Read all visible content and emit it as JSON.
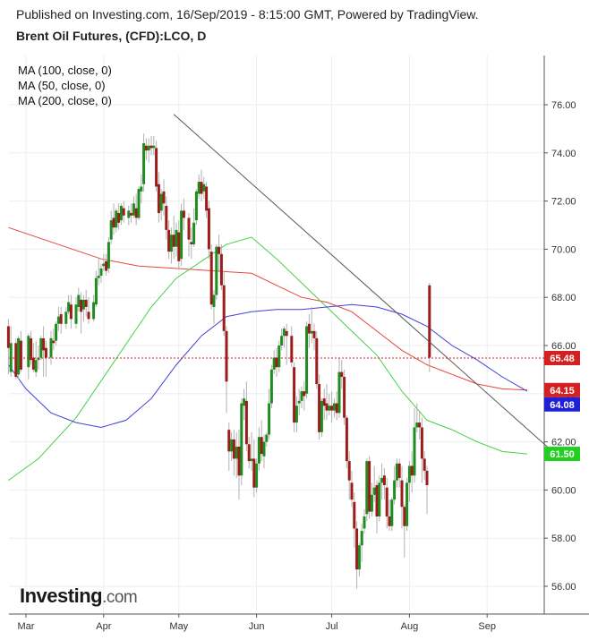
{
  "header": {
    "published": "Published on Investing.com, 16/Sep/2019 - 8:15:00 GMT, Powered by TradingView.",
    "title": "Brent Oil Futures, (CFD):LCO, D"
  },
  "legend": [
    "MA (100, close, 0)",
    "MA (50, close, 0)",
    "MA (200, close, 0)"
  ],
  "logo": {
    "main": "Investing",
    "suffix": ".com"
  },
  "colors": {
    "up": "#1e8c1e",
    "down": "#9c1b1b",
    "ma100": "#e8463a",
    "ma50": "#46d046",
    "ma200": "#4040d8",
    "trend": "#555555"
  },
  "chart_data": {
    "type": "candlestick",
    "title": "Brent Oil Futures, (CFD):LCO, D",
    "ylim": [
      55,
      78
    ],
    "y_ticks": [
      "76.00",
      "74.00",
      "72.00",
      "70.00",
      "68.00",
      "66.00",
      "64.00",
      "62.00",
      "60.00",
      "58.00",
      "56.00"
    ],
    "x_ticks": [
      {
        "label": "Mar",
        "day": 0
      },
      {
        "label": "Apr",
        "day": 31
      },
      {
        "label": "May",
        "day": 61
      },
      {
        "label": "Jun",
        "day": 92
      },
      {
        "label": "Jul",
        "day": 122
      },
      {
        "label": "Aug",
        "day": 153
      },
      {
        "label": "Sep",
        "day": 184
      }
    ],
    "price_labels": [
      {
        "value": "65.48",
        "y": 65.48,
        "color": "#d42020"
      },
      {
        "value": "64.15",
        "y": 64.15,
        "color": "#d42020"
      },
      {
        "value": "64.08",
        "y": 64.08,
        "color": "#2020d8"
      },
      {
        "value": "61.50",
        "y": 61.5,
        "color": "#1fd01f"
      }
    ],
    "current_price_line": 65.48,
    "trendline": [
      [
        59,
        75.6
      ],
      [
        209,
        61.7
      ]
    ],
    "ma100": [
      [
        -7,
        70.9
      ],
      [
        10,
        70.3
      ],
      [
        30,
        69.6
      ],
      [
        45,
        69.3
      ],
      [
        60,
        69.2
      ],
      [
        75,
        69.1
      ],
      [
        90,
        69.0
      ],
      [
        100,
        68.5
      ],
      [
        110,
        68.0
      ],
      [
        120,
        67.8
      ],
      [
        130,
        67.4
      ],
      [
        140,
        66.6
      ],
      [
        150,
        65.8
      ],
      [
        160,
        65.2
      ],
      [
        170,
        64.8
      ],
      [
        180,
        64.4
      ],
      [
        190,
        64.2
      ],
      [
        200,
        64.15
      ]
    ],
    "ma50": [
      [
        -7,
        60.4
      ],
      [
        5,
        61.3
      ],
      [
        20,
        63.0
      ],
      [
        35,
        65.3
      ],
      [
        50,
        67.6
      ],
      [
        60,
        68.8
      ],
      [
        70,
        69.5
      ],
      [
        80,
        70.2
      ],
      [
        90,
        70.5
      ],
      [
        100,
        69.6
      ],
      [
        110,
        68.6
      ],
      [
        120,
        67.6
      ],
      [
        130,
        66.6
      ],
      [
        140,
        65.6
      ],
      [
        150,
        64.1
      ],
      [
        160,
        62.9
      ],
      [
        170,
        62.5
      ],
      [
        180,
        62.0
      ],
      [
        190,
        61.6
      ],
      [
        200,
        61.5
      ]
    ],
    "ma200": [
      [
        -7,
        65.2
      ],
      [
        0,
        64.2
      ],
      [
        10,
        63.2
      ],
      [
        20,
        62.8
      ],
      [
        30,
        62.6
      ],
      [
        40,
        62.9
      ],
      [
        50,
        63.8
      ],
      [
        60,
        65.2
      ],
      [
        70,
        66.4
      ],
      [
        80,
        67.2
      ],
      [
        90,
        67.4
      ],
      [
        100,
        67.5
      ],
      [
        110,
        67.5
      ],
      [
        120,
        67.6
      ],
      [
        130,
        67.7
      ],
      [
        140,
        67.6
      ],
      [
        150,
        67.3
      ],
      [
        160,
        66.8
      ],
      [
        170,
        66.0
      ],
      [
        180,
        65.4
      ],
      [
        190,
        64.7
      ],
      [
        200,
        64.1
      ]
    ],
    "candles": [
      [
        -7,
        66.8,
        67.1,
        65.9,
        64.8
      ],
      [
        -6,
        64.9,
        66.8,
        66.1,
        64.7
      ],
      [
        -4,
        66.1,
        66.3,
        64.7,
        64.6
      ],
      [
        -3,
        64.8,
        66.4,
        66.3,
        64.6
      ],
      [
        -2,
        66.2,
        66.6,
        65.0,
        64.9
      ],
      [
        1,
        65.1,
        66.5,
        66.4,
        64.6
      ],
      [
        2,
        66.3,
        66.6,
        65.4,
        65.2
      ],
      [
        3,
        65.5,
        66.1,
        65.0,
        64.9
      ],
      [
        4,
        64.9,
        66.2,
        65.4,
        64.7
      ],
      [
        5,
        65.4,
        66.0,
        65.5,
        65.0
      ],
      [
        6,
        65.5,
        66.4,
        66.3,
        65.4
      ],
      [
        7,
        66.3,
        66.8,
        65.8,
        64.7
      ],
      [
        8,
        65.9,
        66.2,
        65.5,
        64.7
      ],
      [
        10,
        65.5,
        66.6,
        66.3,
        65.2
      ],
      [
        11,
        66.2,
        66.7,
        66.1,
        65.8
      ],
      [
        12,
        66.2,
        67.0,
        66.9,
        66.0
      ],
      [
        13,
        66.9,
        67.6,
        67.2,
        66.6
      ],
      [
        14,
        67.3,
        67.6,
        66.9,
        66.5
      ],
      [
        16,
        66.9,
        67.6,
        67.4,
        66.7
      ],
      [
        17,
        67.4,
        68.1,
        67.8,
        67.3
      ],
      [
        18,
        67.7,
        68.1,
        67.1,
        66.7
      ],
      [
        20,
        66.9,
        68.0,
        67.7,
        66.7
      ],
      [
        21,
        67.6,
        68.4,
        68.1,
        67.4
      ],
      [
        22,
        67.9,
        68.2,
        67.4,
        66.5
      ],
      [
        23,
        67.5,
        68.1,
        67.9,
        67.0
      ],
      [
        24,
        67.9,
        68.3,
        67.6,
        67.2
      ],
      [
        25,
        67.4,
        68.0,
        67.1,
        66.9
      ],
      [
        27,
        67.1,
        68.1,
        67.8,
        67.0
      ],
      [
        28,
        67.7,
        69.1,
        68.8,
        67.6
      ],
      [
        29,
        68.8,
        69.6,
        68.9,
        68.5
      ],
      [
        30,
        68.9,
        69.4,
        69.2,
        68.6
      ],
      [
        31,
        69.3,
        69.8,
        69.4,
        69.1
      ],
      [
        32,
        69.5,
        69.8,
        69.1,
        68.9
      ],
      [
        33,
        69.2,
        70.5,
        70.3,
        69.0
      ],
      [
        34,
        70.4,
        71.6,
        71.2,
        70.2
      ],
      [
        35,
        71.3,
        71.9,
        70.9,
        70.6
      ],
      [
        36,
        70.9,
        71.7,
        71.6,
        70.7
      ],
      [
        37,
        71.5,
        71.9,
        71.1,
        70.8
      ],
      [
        38,
        71.2,
        71.9,
        71.8,
        71.0
      ],
      [
        39,
        71.7,
        72.0,
        71.4,
        71.1
      ],
      [
        41,
        71.3,
        71.8,
        71.6,
        71.0
      ],
      [
        42,
        71.5,
        71.9,
        71.4,
        71.1
      ],
      [
        43,
        71.4,
        72.2,
        71.9,
        71.3
      ],
      [
        44,
        71.7,
        72.3,
        71.3,
        71.0
      ],
      [
        45,
        71.3,
        72.6,
        72.5,
        71.2
      ],
      [
        46,
        72.4,
        73.1,
        72.6,
        71.9
      ],
      [
        47,
        72.7,
        74.8,
        74.4,
        72.4
      ],
      [
        48,
        74.3,
        74.6,
        74.1,
        73.7
      ],
      [
        49,
        74.1,
        74.6,
        74.3,
        73.6
      ],
      [
        50,
        74.3,
        74.7,
        74.2,
        73.9
      ],
      [
        51,
        74.2,
        74.7,
        74.3,
        73.9
      ],
      [
        52,
        74.2,
        74.5,
        72.6,
        72.4
      ],
      [
        53,
        72.7,
        73.2,
        71.5,
        71.1
      ],
      [
        54,
        71.6,
        72.5,
        72.3,
        71.2
      ],
      [
        55,
        72.4,
        72.9,
        71.9,
        71.4
      ],
      [
        56,
        71.8,
        72.2,
        70.8,
        70.4
      ],
      [
        57,
        70.8,
        71.2,
        69.9,
        69.6
      ],
      [
        58,
        69.9,
        70.9,
        70.6,
        69.4
      ],
      [
        59,
        70.6,
        71.4,
        70.1,
        69.6
      ],
      [
        60,
        70.1,
        71.1,
        70.8,
        69.7
      ],
      [
        61,
        70.7,
        71.2,
        69.5,
        69.2
      ],
      [
        62,
        69.6,
        71.9,
        71.6,
        69.3
      ],
      [
        63,
        71.6,
        72.1,
        71.3,
        70.8
      ],
      [
        65,
        71.3,
        71.5,
        70.4,
        69.7
      ],
      [
        66,
        70.3,
        70.9,
        70.2,
        69.6
      ],
      [
        67,
        70.2,
        71.7,
        71.1,
        70.1
      ],
      [
        68,
        71.2,
        72.5,
        72.4,
        71.0
      ],
      [
        69,
        72.3,
        73.1,
        72.8,
        72.1
      ],
      [
        70,
        72.8,
        73.3,
        72.3,
        72.0
      ],
      [
        71,
        72.4,
        73.0,
        72.7,
        72.1
      ],
      [
        72,
        72.6,
        72.8,
        71.6,
        71.3
      ],
      [
        73,
        71.7,
        72.0,
        70.0,
        69.6
      ],
      [
        74,
        69.9,
        70.2,
        67.7,
        67.5
      ],
      [
        75,
        67.6,
        68.3,
        68.1,
        66.9
      ],
      [
        76,
        68.1,
        70.2,
        70.1,
        67.9
      ],
      [
        77,
        70.1,
        70.6,
        69.8,
        69.1
      ],
      [
        78,
        69.8,
        70.2,
        68.5,
        68.3
      ],
      [
        79,
        68.5,
        69.1,
        66.6,
        66.4
      ],
      [
        80,
        66.6,
        66.8,
        64.5,
        63.2
      ],
      [
        81,
        62.5,
        62.8,
        61.6,
        60.8
      ],
      [
        82,
        61.6,
        62.4,
        62.1,
        61.2
      ],
      [
        83,
        62.1,
        62.5,
        61.3,
        60.6
      ],
      [
        84,
        61.3,
        62.4,
        61.8,
        60.5
      ],
      [
        85,
        61.8,
        62.5,
        60.6,
        59.6
      ],
      [
        86,
        60.6,
        63.8,
        63.6,
        60.2
      ],
      [
        87,
        63.5,
        64.2,
        63.8,
        62.9
      ],
      [
        88,
        63.7,
        64.5,
        61.9,
        61.6
      ],
      [
        89,
        61.9,
        62.2,
        61.2,
        60.9
      ],
      [
        90,
        61.2,
        62.4,
        61.3,
        60.8
      ],
      [
        91,
        61.3,
        62.1,
        60.1,
        59.7
      ],
      [
        92,
        60.1,
        61.3,
        61.1,
        59.9
      ],
      [
        93,
        61.1,
        62.6,
        62.2,
        60.8
      ],
      [
        94,
        62.2,
        62.9,
        61.5,
        61.2
      ],
      [
        95,
        61.4,
        62.3,
        62.0,
        60.9
      ],
      [
        96,
        62.0,
        62.4,
        62.3,
        61.8
      ],
      [
        97,
        62.3,
        64.2,
        63.6,
        62.1
      ],
      [
        98,
        63.6,
        65.2,
        65.0,
        63.4
      ],
      [
        99,
        65.0,
        65.8,
        65.5,
        64.8
      ],
      [
        100,
        65.5,
        65.9,
        65.1,
        64.7
      ],
      [
        101,
        65.1,
        66.2,
        66.0,
        64.9
      ],
      [
        102,
        66.0,
        66.7,
        66.4,
        65.8
      ],
      [
        103,
        66.4,
        66.8,
        66.7,
        65.9
      ],
      [
        104,
        66.6,
        66.9,
        66.4,
        65.2
      ],
      [
        106,
        66.4,
        66.8,
        65.3,
        65.1
      ],
      [
        107,
        65.1,
        65.3,
        62.8,
        62.4
      ],
      [
        108,
        62.8,
        63.9,
        63.5,
        62.4
      ],
      [
        109,
        63.6,
        64.2,
        63.7,
        63.1
      ],
      [
        110,
        63.7,
        64.3,
        64.1,
        63.4
      ],
      [
        111,
        64.1,
        64.5,
        63.9,
        63.3
      ],
      [
        112,
        64.0,
        67.0,
        66.8,
        63.8
      ],
      [
        113,
        66.9,
        67.3,
        66.5,
        65.9
      ],
      [
        114,
        66.5,
        67.6,
        66.6,
        66.1
      ],
      [
        115,
        66.6,
        66.9,
        66.3,
        65.8
      ],
      [
        116,
        66.3,
        66.6,
        64.4,
        64.2
      ],
      [
        117,
        64.4,
        64.8,
        62.4,
        62.1
      ],
      [
        118,
        62.4,
        63.8,
        63.7,
        62.2
      ],
      [
        119,
        63.8,
        64.2,
        63.5,
        62.9
      ],
      [
        120,
        63.6,
        64.4,
        63.3,
        62.9
      ],
      [
        121,
        63.3,
        64.0,
        63.5,
        63.1
      ],
      [
        122,
        63.5,
        64.1,
        63.3,
        62.8
      ],
      [
        123,
        63.3,
        63.8,
        63.6,
        63.0
      ],
      [
        124,
        63.6,
        64.1,
        63.2,
        62.9
      ],
      [
        125,
        63.2,
        65.5,
        64.9,
        63.0
      ],
      [
        126,
        64.9,
        65.4,
        64.7,
        64.2
      ],
      [
        127,
        64.7,
        65.0,
        63.0,
        62.7
      ],
      [
        128,
        63.0,
        63.1,
        61.2,
        60.9
      ],
      [
        129,
        61.2,
        61.6,
        60.4,
        59.6
      ],
      [
        130,
        60.3,
        60.8,
        59.6,
        59.3
      ],
      [
        131,
        59.5,
        59.9,
        58.4,
        57.6
      ],
      [
        132,
        58.4,
        58.7,
        56.7,
        55.9
      ],
      [
        133,
        56.7,
        57.8,
        57.7,
        56.4
      ],
      [
        134,
        57.7,
        58.6,
        58.3,
        57.0
      ],
      [
        135,
        58.4,
        59.2,
        58.9,
        58.2
      ],
      [
        136,
        59.0,
        61.3,
        61.2,
        58.7
      ],
      [
        137,
        61.2,
        61.4,
        59.1,
        58.8
      ],
      [
        138,
        59.1,
        60.3,
        59.8,
        58.9
      ],
      [
        139,
        59.8,
        61.0,
        60.1,
        59.5
      ],
      [
        140,
        60.2,
        60.4,
        58.9,
        58.2
      ],
      [
        141,
        58.9,
        60.6,
        60.3,
        58.7
      ],
      [
        142,
        60.3,
        61.1,
        60.5,
        59.6
      ],
      [
        143,
        60.6,
        60.9,
        60.2,
        59.6
      ],
      [
        144,
        60.1,
        60.5,
        58.9,
        58.4
      ],
      [
        145,
        58.9,
        59.6,
        58.5,
        58.3
      ],
      [
        146,
        58.5,
        59.7,
        59.6,
        58.3
      ],
      [
        147,
        59.6,
        61.0,
        60.4,
        59.4
      ],
      [
        148,
        60.4,
        61.3,
        61.1,
        60.1
      ],
      [
        149,
        61.1,
        61.3,
        60.5,
        60.1
      ],
      [
        150,
        60.4,
        61.0,
        59.3,
        58.4
      ],
      [
        151,
        59.3,
        59.4,
        58.5,
        57.2
      ],
      [
        152,
        58.5,
        60.5,
        60.3,
        58.3
      ],
      [
        153,
        60.3,
        61.2,
        61.0,
        59.5
      ],
      [
        154,
        61.0,
        61.6,
        60.6,
        59.9
      ],
      [
        155,
        60.6,
        63.4,
        62.6,
        60.3
      ],
      [
        156,
        62.6,
        63.6,
        62.8,
        62.4
      ],
      [
        157,
        62.8,
        63.3,
        62.6,
        62.1
      ],
      [
        158,
        62.6,
        63.0,
        61.3,
        60.3
      ],
      [
        159,
        61.3,
        61.6,
        60.8,
        60.4
      ],
      [
        160,
        60.8,
        61.0,
        60.2,
        59.0
      ],
      [
        161,
        68.5,
        68.6,
        65.5,
        64.9
      ]
    ]
  }
}
